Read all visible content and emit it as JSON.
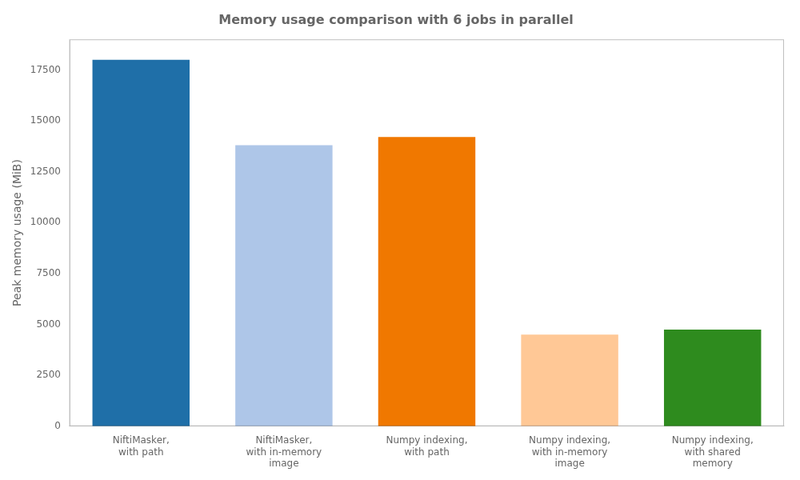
{
  "chart_data": {
    "type": "bar",
    "title": "Memory usage comparison with 6 jobs in parallel",
    "ylabel": "Peak memory usage (MiB)",
    "categories": [
      "NiftiMasker,\nwith path",
      "NiftiMasker,\nwith in-memory\nimage",
      "Numpy indexing,\nwith path",
      "Numpy indexing,\nwith in-memory\nimage",
      "Numpy indexing,\nwith shared\nmemory"
    ],
    "values": [
      18000,
      13800,
      14200,
      4500,
      4750
    ],
    "colors": [
      "#1f6fa8",
      "#aec6e8",
      "#f07800",
      "#ffc896",
      "#2e8b1e"
    ],
    "ylim": [
      0,
      19000
    ],
    "yticks": [
      0,
      2500,
      5000,
      7500,
      10000,
      12500,
      15000,
      17500
    ],
    "grid": false
  }
}
